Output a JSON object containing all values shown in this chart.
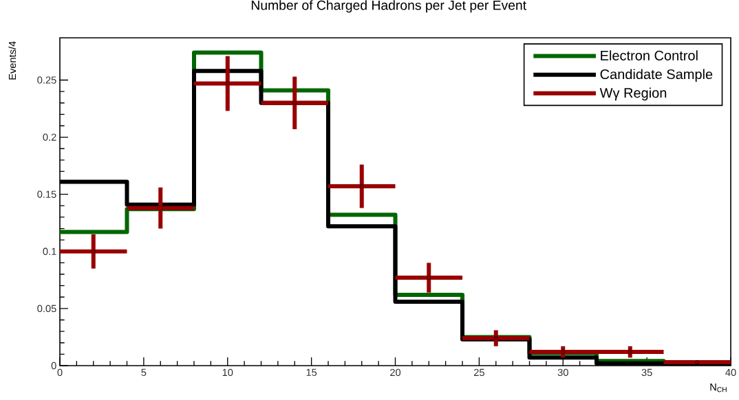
{
  "chart_data": {
    "type": "histogram",
    "title": "Number of Charged Hadrons per Jet per Event",
    "xlabel": "N$_{CH}$",
    "ylabel": "Events/4",
    "bins": [
      0,
      4,
      8,
      12,
      16,
      20,
      24,
      28,
      32,
      36,
      40
    ],
    "xlim": [
      0,
      40
    ],
    "ylim": [
      0,
      0.287
    ],
    "xticks": [
      0,
      5,
      10,
      15,
      20,
      25,
      30,
      35,
      40
    ],
    "yticks": [
      0,
      0.05,
      0.1,
      0.15,
      0.2,
      0.25
    ],
    "legend": "top right",
    "series": [
      {
        "name": "Electron Control",
        "color": "#006600",
        "values": [
          0.117,
          0.137,
          0.274,
          0.241,
          0.132,
          0.062,
          0.025,
          0.011,
          0.004,
          0.002
        ]
      },
      {
        "name": "Candidate Sample",
        "color": "#000000",
        "values": [
          0.161,
          0.141,
          0.258,
          0.23,
          0.122,
          0.056,
          0.023,
          0.007,
          0.002,
          0.001
        ]
      },
      {
        "name": "Wγ Region",
        "type": "scatter",
        "color": "#990000",
        "x": [
          2,
          6,
          10,
          14,
          18,
          22,
          26,
          30,
          34,
          38
        ],
        "values": [
          0.1,
          0.138,
          0.247,
          0.23,
          0.157,
          0.077,
          0.024,
          0.012,
          0.012,
          0.003
        ],
        "errors": [
          0.015,
          0.018,
          0.024,
          0.023,
          0.019,
          0.013,
          0.007,
          0.005,
          0.005,
          0.001
        ],
        "xerrors": [
          2,
          2,
          2,
          2,
          2,
          2,
          2,
          2,
          2,
          2
        ]
      }
    ]
  }
}
